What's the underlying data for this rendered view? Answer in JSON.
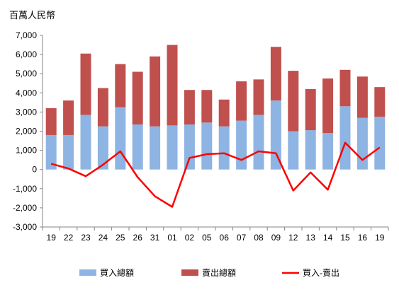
{
  "chart_data": {
    "type": "bar",
    "unit_label": "百萬人民幣",
    "categories": [
      "19",
      "22",
      "23",
      "24",
      "25",
      "26",
      "31",
      "01",
      "02",
      "05",
      "06",
      "07",
      "08",
      "09",
      "12",
      "13",
      "14",
      "15",
      "16",
      "19"
    ],
    "ylim": [
      -3000,
      7000
    ],
    "yticks": [
      -3000,
      -2000,
      -1000,
      0,
      1000,
      2000,
      3000,
      4000,
      5000,
      6000,
      7000
    ],
    "ytick_labels": [
      "-3,000",
      "-2,000",
      "-1,000",
      "0",
      "1,000",
      "2,000",
      "3,000",
      "4,000",
      "5,000",
      "6,000",
      "7,000"
    ],
    "grid": false,
    "legend_position": "bottom",
    "series": [
      {
        "name": "買入總額",
        "kind": "stacked-bar",
        "color": "#8eb4e3",
        "values": [
          1800,
          1800,
          2850,
          2250,
          3250,
          2350,
          2250,
          2300,
          2350,
          2450,
          2250,
          2550,
          2850,
          3600,
          2000,
          2050,
          1900,
          3300,
          2700,
          2750
        ]
      },
      {
        "name": "賣出總額",
        "kind": "stacked-bar",
        "color": "#c0504d",
        "values": [
          1400,
          1800,
          3200,
          2000,
          2250,
          2750,
          3650,
          4200,
          1800,
          1700,
          1400,
          2050,
          1850,
          2800,
          3150,
          2150,
          2850,
          1900,
          2150,
          1550
        ]
      },
      {
        "name": "買入-賣出",
        "kind": "line",
        "color": "#ff0000",
        "values": [
          300,
          50,
          -350,
          250,
          950,
          -400,
          -1400,
          -1950,
          600,
          800,
          850,
          500,
          950,
          850,
          -1100,
          -150,
          -1050,
          1400,
          500,
          1150
        ]
      }
    ]
  }
}
